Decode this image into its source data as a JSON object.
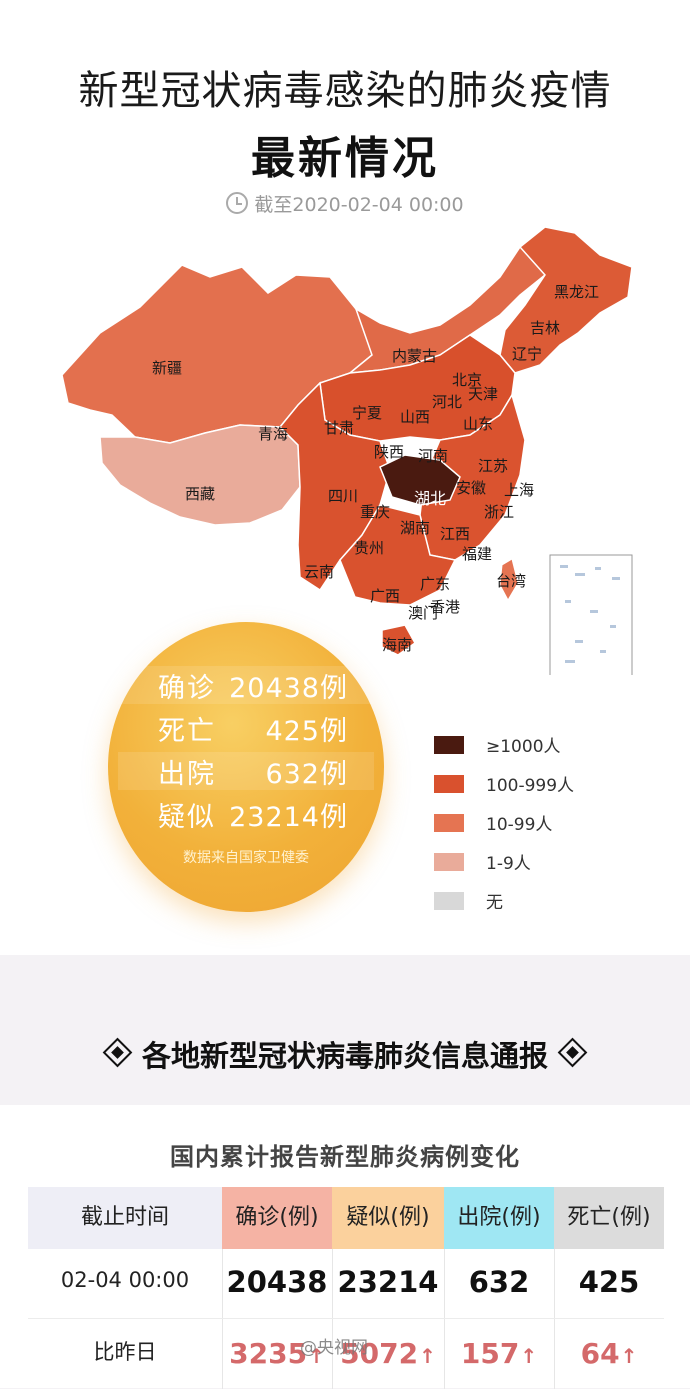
{
  "header": {
    "title_line1": "新型冠状病毒感染的肺炎疫情",
    "title_line2": "最新情况",
    "as_of": "截至2020-02-04 00:00"
  },
  "map": {
    "provinces": [
      {
        "name": "黑龙江"
      },
      {
        "name": "吉林"
      },
      {
        "name": "辽宁"
      },
      {
        "name": "内蒙古"
      },
      {
        "name": "北京"
      },
      {
        "name": "天津"
      },
      {
        "name": "河北"
      },
      {
        "name": "山东"
      },
      {
        "name": "山西"
      },
      {
        "name": "宁夏"
      },
      {
        "name": "甘肃"
      },
      {
        "name": "新疆"
      },
      {
        "name": "青海"
      },
      {
        "name": "西藏"
      },
      {
        "name": "陕西"
      },
      {
        "name": "河南"
      },
      {
        "name": "江苏"
      },
      {
        "name": "上海"
      },
      {
        "name": "安徽"
      },
      {
        "name": "湖北"
      },
      {
        "name": "四川"
      },
      {
        "name": "重庆"
      },
      {
        "name": "浙江"
      },
      {
        "name": "湖南"
      },
      {
        "name": "江西"
      },
      {
        "name": "贵州"
      },
      {
        "name": "福建"
      },
      {
        "name": "云南"
      },
      {
        "name": "广西"
      },
      {
        "name": "广东"
      },
      {
        "name": "台湾"
      },
      {
        "name": "香港"
      },
      {
        "name": "澳门"
      },
      {
        "name": "海南"
      }
    ],
    "colors": {
      "level_1000": "#4a1a10",
      "level_100": "#d9512e",
      "level_10": "#e57452",
      "level_1": "#e9ab9a",
      "none": "#d8d8d8"
    }
  },
  "summary": {
    "confirmed_label": "确诊",
    "confirmed_value": "20438例",
    "deaths_label": "死亡",
    "deaths_value": "425例",
    "recovered_label": "出院",
    "recovered_value": "632例",
    "suspected_label": "疑似",
    "suspected_value": "23214例",
    "source": "数据来自国家卫健委"
  },
  "legend": [
    {
      "label": "≥1000人",
      "color": "#4a1a10"
    },
    {
      "label": "100-999人",
      "color": "#d9512e"
    },
    {
      "label": "10-99人",
      "color": "#e57452"
    },
    {
      "label": "1-9人",
      "color": "#e9ab9a"
    },
    {
      "label": "无",
      "color": "#d8d8d8"
    }
  ],
  "section": {
    "title": "各地新型冠状病毒肺炎信息通报"
  },
  "table": {
    "title": "国内累计报告新型肺炎病例变化",
    "headers": [
      "截止时间",
      "确诊(例)",
      "疑似(例)",
      "出院(例)",
      "死亡(例)"
    ],
    "header_colors": [
      "#eeeef6",
      "#f5b3a4",
      "#fbd19d",
      "#9fe7f3",
      "#dcdcdc"
    ],
    "row1": {
      "time": "02-04 00:00",
      "confirmed": "20438",
      "suspected": "23214",
      "recovered": "632",
      "deaths": "425"
    },
    "row2": {
      "label": "比昨日",
      "confirmed": "3235",
      "suspected": "5072",
      "recovered": "157",
      "deaths": "64"
    },
    "arrow": "↑"
  },
  "watermark": "@央视网"
}
